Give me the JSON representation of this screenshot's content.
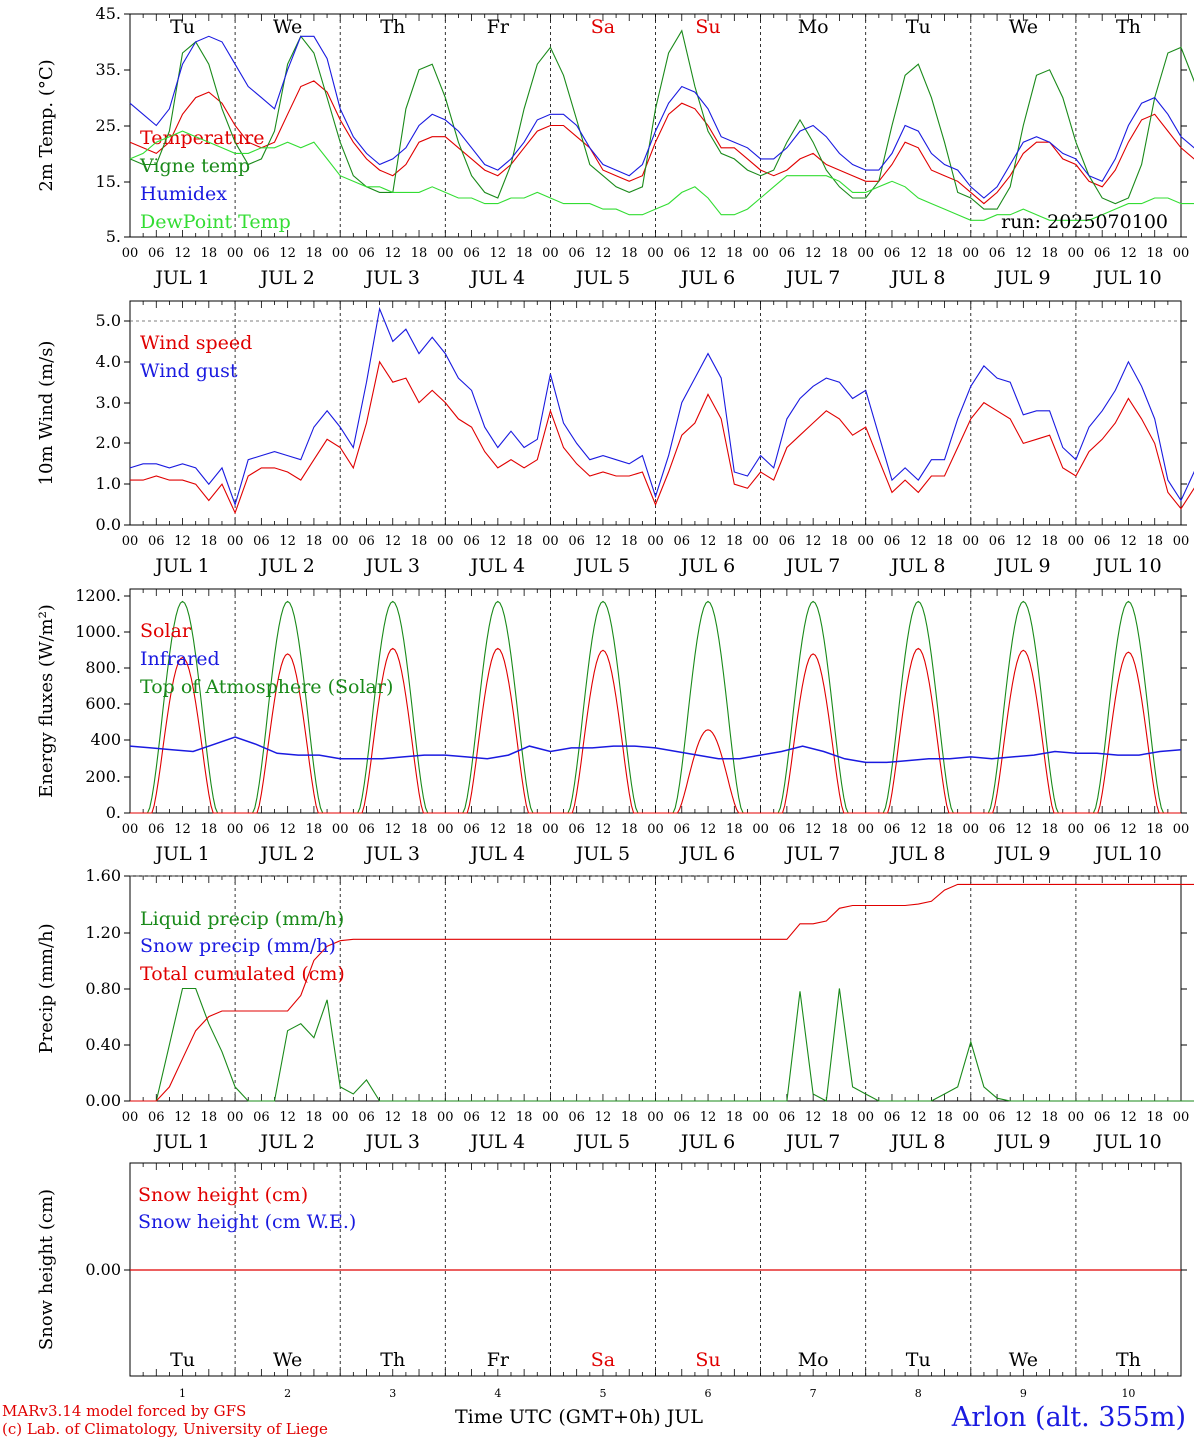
{
  "colors": {
    "red": "#e00000",
    "green": "#1a8a1a",
    "blue": "#1a1ae0",
    "lightgreen": "#33dd33",
    "black": "#000000"
  },
  "days": [
    "Tu",
    "We",
    "Th",
    "Fr",
    "Sa",
    "Su",
    "Mo",
    "Tu",
    "We",
    "Th"
  ],
  "weekend_indices": [
    4,
    5
  ],
  "hour_labels": [
    "00",
    "06",
    "12",
    "18"
  ],
  "date_labels": [
    "JUL  1",
    "JUL  2",
    "JUL  3",
    "JUL  4",
    "JUL  5",
    "JUL  6",
    "JUL  7",
    "JUL  8",
    "JUL  9",
    "JUL 10"
  ],
  "bottom_day_numbers": [
    "1",
    "2",
    "3",
    "4",
    "5",
    "6",
    "7",
    "8",
    "9",
    "10"
  ],
  "footer": {
    "credit_line1": "MARv3.14 model forced by GFS",
    "credit_line2": "(c) Lab. of Climatology, University of Liege",
    "time_axis": "Time UTC (GMT+0h) JUL",
    "station": "Arlon (alt. 355m)"
  },
  "chart_data": [
    {
      "type": "line",
      "ylabel": "2m Temp. (°C)",
      "yticks": [
        "45.",
        "35.",
        "25.",
        "15.",
        "5."
      ],
      "ylim": [
        5,
        45
      ],
      "run_label": "run: 2025070100",
      "x_unit": "hours since 2025-07-01 00 UTC (3-hourly)",
      "series": [
        {
          "name": "Temperature",
          "color": "red",
          "values": [
            22,
            21,
            20,
            22,
            27,
            30,
            31,
            29,
            25,
            22,
            21,
            22,
            27,
            32,
            33,
            31,
            26,
            22,
            19,
            17,
            16,
            18,
            22,
            23,
            23,
            21,
            19,
            17,
            16,
            18,
            21,
            24,
            25,
            25,
            23,
            21,
            17,
            16,
            15,
            16,
            22,
            27,
            29,
            28,
            25,
            21,
            21,
            19,
            17,
            16,
            17,
            19,
            20,
            18,
            17,
            16,
            15,
            15,
            18,
            22,
            21,
            17,
            16,
            15,
            13,
            11,
            13,
            16,
            20,
            22,
            22,
            19,
            18,
            15,
            14,
            17,
            22,
            26,
            27,
            24,
            21,
            19,
            18,
            16,
            19,
            24,
            27,
            29,
            26,
            23,
            21,
            20
          ]
        },
        {
          "name": "Vigne temp",
          "color": "green",
          "values": [
            19,
            18,
            18,
            24,
            38,
            40,
            36,
            28,
            22,
            18,
            19,
            24,
            36,
            41,
            38,
            30,
            22,
            16,
            14,
            13,
            13,
            28,
            35,
            36,
            30,
            22,
            16,
            13,
            12,
            18,
            28,
            36,
            39,
            34,
            26,
            18,
            16,
            14,
            13,
            14,
            28,
            38,
            42,
            32,
            24,
            20,
            19,
            17,
            16,
            17,
            22,
            26,
            22,
            17,
            14,
            12,
            12,
            15,
            25,
            34,
            36,
            30,
            22,
            13,
            12,
            10,
            10,
            14,
            25,
            34,
            35,
            30,
            22,
            16,
            12,
            11,
            12,
            18,
            30,
            38,
            39,
            33,
            24,
            16,
            14,
            13,
            14,
            20,
            32,
            38,
            40,
            34,
            24,
            18
          ]
        },
        {
          "name": "Humidex",
          "color": "blue",
          "values": [
            29,
            27,
            25,
            28,
            36,
            40,
            41,
            40,
            36,
            32,
            30,
            28,
            35,
            41,
            41,
            37,
            28,
            23,
            20,
            18,
            19,
            21,
            25,
            27,
            26,
            24,
            21,
            18,
            17,
            19,
            22,
            26,
            27,
            27,
            25,
            21,
            18,
            17,
            16,
            18,
            24,
            29,
            32,
            31,
            28,
            23,
            22,
            21,
            19,
            19,
            21,
            24,
            25,
            23,
            20,
            18,
            17,
            17,
            20,
            25,
            24,
            20,
            18,
            17,
            14,
            12,
            14,
            18,
            22,
            23,
            22,
            20,
            19,
            16,
            15,
            19,
            25,
            29,
            30,
            27,
            23,
            21,
            20,
            18,
            21,
            26,
            30,
            32,
            31,
            27,
            24,
            22
          ]
        },
        {
          "name": "DewPoint Temp",
          "color": "lightgreen",
          "values": [
            19,
            20,
            22,
            23,
            24,
            23,
            22,
            21,
            20,
            20,
            21,
            21,
            22,
            21,
            22,
            19,
            16,
            15,
            14,
            14,
            13,
            13,
            13,
            14,
            13,
            12,
            12,
            11,
            11,
            12,
            12,
            13,
            12,
            11,
            11,
            11,
            10,
            10,
            9,
            9,
            10,
            11,
            13,
            14,
            12,
            9,
            9,
            10,
            12,
            14,
            16,
            16,
            16,
            16,
            15,
            13,
            13,
            14,
            15,
            14,
            12,
            11,
            10,
            9,
            8,
            8,
            9,
            9,
            10,
            9,
            8,
            8,
            8,
            8,
            9,
            10,
            11,
            11,
            12,
            12,
            11,
            11,
            12,
            12,
            13,
            13,
            13,
            13,
            13,
            12,
            14,
            14
          ]
        }
      ]
    },
    {
      "type": "line",
      "ylabel": "10m Wind (m/s)",
      "yticks": [
        "5.0",
        "4.0",
        "3.0",
        "2.0",
        "1.0",
        "0.0"
      ],
      "ylim": [
        0,
        5.5
      ],
      "dashed_line_at": 5,
      "series": [
        {
          "name": "Wind speed",
          "color": "red",
          "values": [
            1.1,
            1.1,
            1.2,
            1.1,
            1.1,
            1.0,
            0.6,
            1.0,
            0.3,
            1.2,
            1.4,
            1.4,
            1.3,
            1.1,
            1.6,
            2.1,
            1.9,
            1.4,
            2.5,
            4.0,
            3.5,
            3.6,
            3.0,
            3.3,
            3.0,
            2.6,
            2.4,
            1.8,
            1.4,
            1.6,
            1.4,
            1.6,
            2.8,
            1.9,
            1.5,
            1.2,
            1.3,
            1.2,
            1.2,
            1.3,
            0.5,
            1.3,
            2.2,
            2.5,
            3.2,
            2.6,
            1.0,
            0.9,
            1.3,
            1.1,
            1.9,
            2.2,
            2.5,
            2.8,
            2.6,
            2.2,
            2.4,
            1.6,
            0.8,
            1.1,
            0.8,
            1.2,
            1.2,
            1.9,
            2.6,
            3.0,
            2.8,
            2.6,
            2.0,
            2.1,
            2.2,
            1.4,
            1.2,
            1.8,
            2.1,
            2.5,
            3.1,
            2.6,
            2.0,
            0.8,
            0.4,
            0.9,
            0.6,
            1.3,
            1.7,
            2.3,
            1.8,
            1.2,
            1.3,
            1.4,
            1.1,
            1.1
          ]
        },
        {
          "name": "Wind gust",
          "color": "blue",
          "values": [
            1.4,
            1.5,
            1.5,
            1.4,
            1.5,
            1.4,
            1.0,
            1.4,
            0.5,
            1.6,
            1.7,
            1.8,
            1.7,
            1.6,
            2.4,
            2.8,
            2.4,
            1.9,
            3.5,
            5.3,
            4.5,
            4.8,
            4.2,
            4.6,
            4.2,
            3.6,
            3.3,
            2.4,
            1.9,
            2.3,
            1.9,
            2.1,
            3.7,
            2.5,
            2.0,
            1.6,
            1.7,
            1.6,
            1.5,
            1.7,
            0.7,
            1.7,
            3.0,
            3.6,
            4.2,
            3.6,
            1.3,
            1.2,
            1.7,
            1.4,
            2.6,
            3.1,
            3.4,
            3.6,
            3.5,
            3.1,
            3.3,
            2.2,
            1.1,
            1.4,
            1.1,
            1.6,
            1.6,
            2.6,
            3.4,
            3.9,
            3.6,
            3.5,
            2.7,
            2.8,
            2.8,
            1.9,
            1.6,
            2.4,
            2.8,
            3.3,
            4.0,
            3.4,
            2.6,
            1.1,
            0.6,
            1.3,
            0.8,
            1.8,
            2.3,
            3.0,
            2.4,
            1.6,
            1.7,
            1.9,
            1.6,
            2.0
          ]
        }
      ]
    },
    {
      "type": "line",
      "ylabel": "Energy fluxes (W/m²)",
      "yticks": [
        "1200.",
        "1000.",
        "800.",
        "600.",
        "400",
        "200.",
        "0."
      ],
      "ylim": [
        0,
        1200
      ],
      "series": [
        {
          "name": "Solar",
          "color": "red",
          "peaks": [
            860,
            880,
            910,
            910,
            900,
            460,
            880,
            910,
            900,
            890
          ]
        },
        {
          "name": "Infrared",
          "color": "blue",
          "values": [
            370,
            360,
            350,
            340,
            380,
            420,
            380,
            330,
            320,
            320,
            300,
            300,
            300,
            310,
            320,
            320,
            310,
            300,
            320,
            370,
            340,
            360,
            360,
            370,
            370,
            360,
            340,
            320,
            300,
            300,
            320,
            340,
            370,
            340,
            300,
            280,
            280,
            290,
            300,
            300,
            310,
            300,
            310,
            320,
            340,
            330,
            330,
            320,
            320,
            340,
            350
          ]
        },
        {
          "name": "Top of Atmosphere (Solar)",
          "color": "green",
          "peak": 1170
        }
      ]
    },
    {
      "type": "line",
      "ylabel": "Precip (mm/h)",
      "yticks": [
        "1.60",
        "1.20",
        "0.80",
        "0.40",
        "0.00"
      ],
      "ylim": [
        0,
        1.6
      ],
      "series": [
        {
          "name": "Liquid precip (mm/h)",
          "color": "green",
          "values": [
            0,
            0,
            0,
            0.4,
            0.8,
            0.8,
            0.55,
            0.35,
            0.1,
            0,
            0,
            0,
            0.5,
            0.55,
            0.45,
            0.72,
            0.1,
            0.05,
            0.15,
            0,
            0,
            0,
            0,
            0,
            0,
            0,
            0,
            0,
            0,
            0,
            0,
            0,
            0,
            0,
            0,
            0,
            0,
            0,
            0,
            0,
            0,
            0,
            0,
            0,
            0,
            0,
            0,
            0,
            0,
            0,
            0,
            0.78,
            0.05,
            0,
            0.8,
            0.1,
            0.05,
            0,
            0,
            0,
            0,
            0,
            0.05,
            0.1,
            0.42,
            0.1,
            0.02,
            0,
            0,
            0,
            0,
            0,
            0,
            0,
            0,
            0,
            0,
            0,
            0,
            0,
            0,
            0,
            0,
            0,
            0,
            0,
            0,
            0,
            0,
            0,
            0,
            0
          ]
        },
        {
          "name": "Snow precip (mm/h)",
          "color": "blue",
          "values": []
        },
        {
          "name": "Total cumulated (cm)",
          "color": "red",
          "values": [
            0,
            0,
            0,
            0.1,
            0.3,
            0.5,
            0.6,
            0.64,
            0.64,
            0.64,
            0.64,
            0.64,
            0.64,
            0.75,
            1.0,
            1.1,
            1.14,
            1.15,
            1.15,
            1.15,
            1.15,
            1.15,
            1.15,
            1.15,
            1.15,
            1.15,
            1.15,
            1.15,
            1.15,
            1.15,
            1.15,
            1.15,
            1.15,
            1.15,
            1.15,
            1.15,
            1.15,
            1.15,
            1.15,
            1.15,
            1.15,
            1.15,
            1.15,
            1.15,
            1.15,
            1.15,
            1.15,
            1.15,
            1.15,
            1.15,
            1.15,
            1.26,
            1.26,
            1.28,
            1.37,
            1.39,
            1.39,
            1.39,
            1.39,
            1.39,
            1.4,
            1.42,
            1.5,
            1.54,
            1.54,
            1.54,
            1.54,
            1.54,
            1.54,
            1.54,
            1.54,
            1.54,
            1.54,
            1.54,
            1.54,
            1.54,
            1.54,
            1.54,
            1.54,
            1.54,
            1.54,
            1.54,
            1.54,
            1.54,
            1.54,
            1.54,
            1.54,
            1.54,
            1.54,
            1.54,
            1.54,
            1.54
          ]
        }
      ]
    },
    {
      "type": "line",
      "ylabel": "Snow height (cm)",
      "yticks": [
        "0.00"
      ],
      "series": [
        {
          "name": "Snow height (cm)",
          "color": "red",
          "values": [
            0
          ]
        },
        {
          "name": "Snow height (cm W.E.)",
          "color": "blue",
          "values": [
            0
          ]
        }
      ]
    }
  ]
}
